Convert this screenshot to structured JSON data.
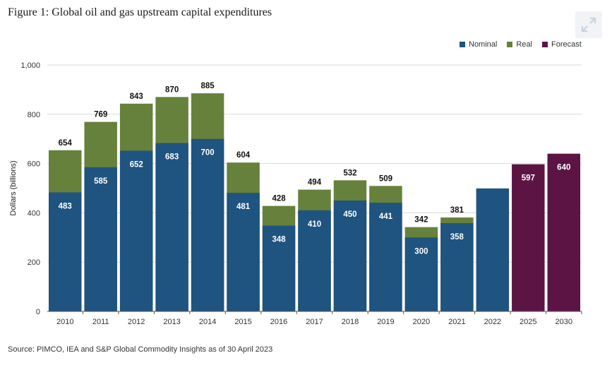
{
  "figure": {
    "title": "Figure 1: Global oil and gas upstream capital expenditures",
    "source": "Source: PIMCO, IEA and S&P Global Commodity Insights as of 30 April 2023"
  },
  "colors": {
    "nominal": "#1f5380",
    "real": "#66813b",
    "forecast": "#5c1445",
    "grid": "#d9d9d9",
    "axis": "#555555"
  },
  "icons": {
    "expand": "expand-arrows-icon"
  },
  "chart_data": {
    "type": "bar",
    "title": "Global oil and gas upstream capital expenditures",
    "ylabel": "Dollars (billions)",
    "xlabel": "",
    "ylim": [
      0,
      1000
    ],
    "yticks": [
      "0",
      "200",
      "400",
      "600",
      "800",
      "1,000"
    ],
    "ytick_values": [
      0,
      200,
      400,
      600,
      800,
      1000
    ],
    "grid": true,
    "legend_position": "top-right",
    "categories": [
      "2010",
      "2011",
      "2012",
      "2013",
      "2014",
      "2015",
      "2016",
      "2017",
      "2018",
      "2019",
      "2020",
      "2021",
      "2022",
      "2025",
      "2030"
    ],
    "series": [
      {
        "name": "Nominal",
        "values": [
          483,
          585,
          652,
          683,
          700,
          481,
          348,
          410,
          450,
          441,
          300,
          358,
          499,
          null,
          null
        ]
      },
      {
        "name": "Real",
        "values": [
          654,
          769,
          843,
          870,
          885,
          604,
          428,
          494,
          532,
          509,
          342,
          381,
          null,
          null,
          null
        ]
      },
      {
        "name": "Forecast",
        "values": [
          null,
          null,
          null,
          null,
          null,
          null,
          null,
          null,
          null,
          null,
          null,
          null,
          null,
          597,
          640
        ]
      }
    ],
    "nominal_labels": [
      "483",
      "585",
      "652",
      "683",
      "700",
      "481",
      "348",
      "410",
      "450",
      "441",
      "300",
      "358",
      "",
      "",
      ""
    ],
    "real_labels": [
      "654",
      "769",
      "843",
      "870",
      "885",
      "604",
      "428",
      "494",
      "532",
      "509",
      "342",
      "381",
      "",
      "",
      ""
    ],
    "forecast_labels": [
      "",
      "",
      "",
      "",
      "",
      "",
      "",
      "",
      "",
      "",
      "",
      "",
      "",
      "597",
      "640"
    ],
    "note": ""
  }
}
